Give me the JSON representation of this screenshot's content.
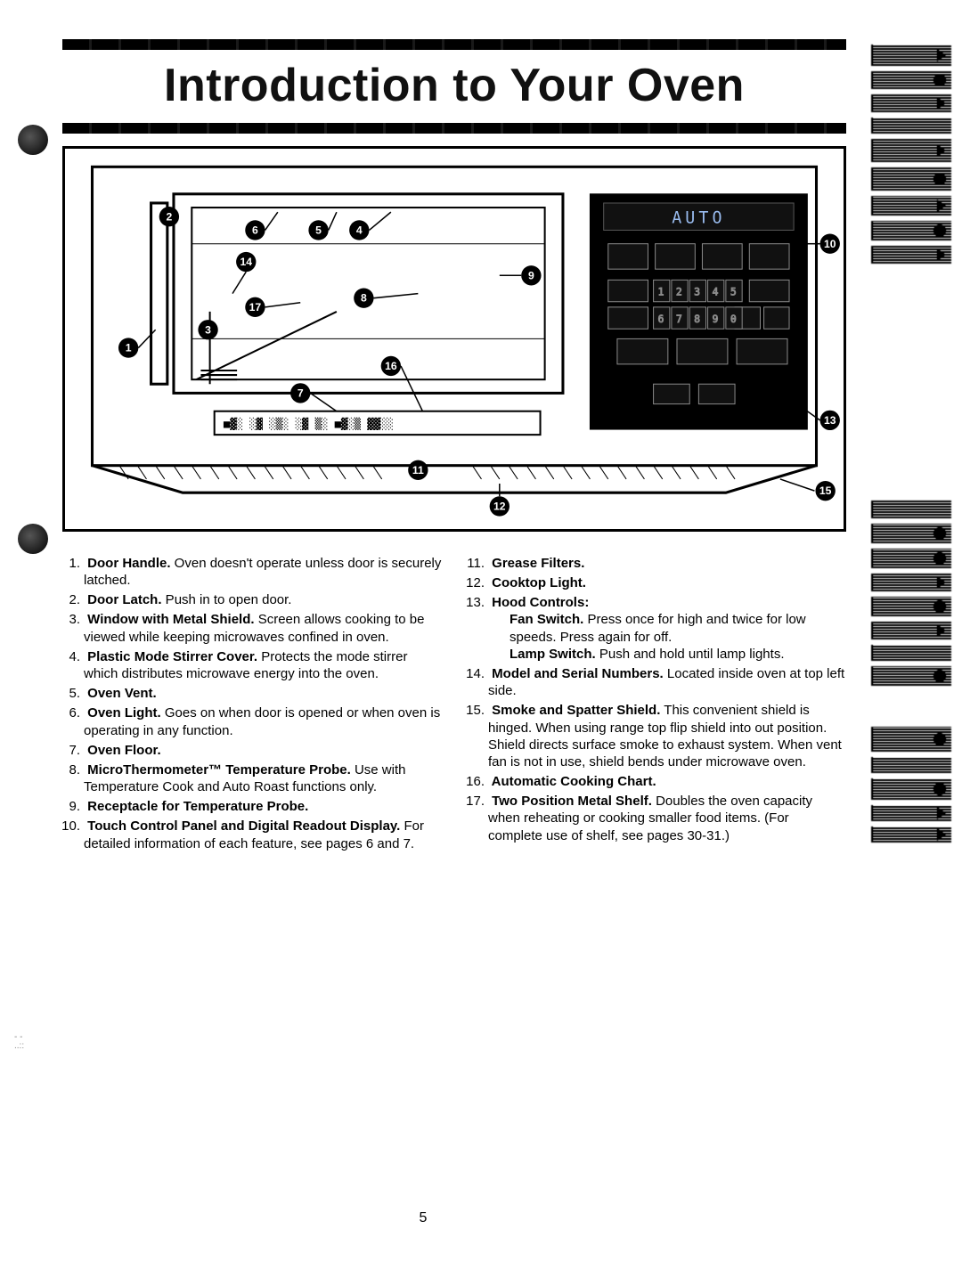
{
  "title": "Introduction to Your Oven",
  "page_number": "5",
  "diagram": {
    "callouts": [
      "1",
      "2",
      "3",
      "4",
      "5",
      "6",
      "7",
      "8",
      "9",
      "10",
      "11",
      "12",
      "13",
      "14",
      "15",
      "16",
      "17"
    ],
    "panel_label": "AUTO"
  },
  "items_left": [
    {
      "n": "1.",
      "bold": "Door Handle.",
      "rest": " Oven doesn't operate unless door is securely latched."
    },
    {
      "n": "2.",
      "bold": "Door Latch.",
      "rest": " Push in to open door."
    },
    {
      "n": "3.",
      "bold": "Window with Metal Shield.",
      "rest": " Screen allows cooking to be viewed while keeping microwaves confined in oven."
    },
    {
      "n": "4.",
      "bold": "Plastic Mode Stirrer Cover.",
      "rest": " Protects the mode stirrer which distributes microwave energy into the oven."
    },
    {
      "n": "5.",
      "bold": "Oven Vent.",
      "rest": ""
    },
    {
      "n": "6.",
      "bold": "Oven Light.",
      "rest": " Goes on when door is opened or when oven is operating in any function."
    },
    {
      "n": "7.",
      "bold": "Oven Floor.",
      "rest": ""
    },
    {
      "n": "8.",
      "bold": "MicroThermometer™ Temperature Probe.",
      "rest": " Use with Temperature Cook and Auto Roast functions only."
    },
    {
      "n": "9.",
      "bold": "Receptacle for Temperature Probe.",
      "rest": ""
    },
    {
      "n": "10.",
      "bold": "Touch Control Panel and Digital Readout Display.",
      "rest": " For detailed information of each feature, see pages 6 and 7."
    }
  ],
  "items_right": [
    {
      "n": "11.",
      "bold": "Grease Filters.",
      "rest": ""
    },
    {
      "n": "12.",
      "bold": "Cooktop Light.",
      "rest": ""
    },
    {
      "n": "13.",
      "bold": "Hood Controls:",
      "rest": "",
      "sub": [
        {
          "bold": "Fan Switch.",
          "rest": " Press once for high and twice for low speeds. Press again for off."
        },
        {
          "bold": "Lamp Switch.",
          "rest": " Push and hold until lamp lights."
        }
      ]
    },
    {
      "n": "14.",
      "bold": "Model and Serial Numbers.",
      "rest": " Located inside oven at top left side."
    },
    {
      "n": "15.",
      "bold": "Smoke and Spatter Shield.",
      "rest": " This convenient shield is hinged. When using range top flip shield into out position. Shield directs surface smoke to exhaust system. When vent fan is not in use, shield bends under microwave oven."
    },
    {
      "n": "16.",
      "bold": "Automatic Cooking Chart.",
      "rest": ""
    },
    {
      "n": "17.",
      "bold": "Two Position Metal Shelf.",
      "rest": " Doubles the oven capacity when reheating or cooking smaller food items. (For complete use of shelf, see pages 30-31.)"
    }
  ],
  "colors": {
    "ink": "#000000",
    "paper": "#ffffff"
  }
}
